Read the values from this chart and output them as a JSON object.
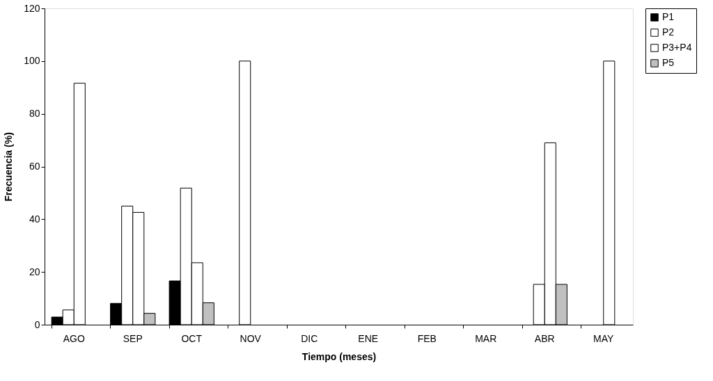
{
  "chart_data": {
    "type": "bar",
    "xlabel": "Tiempo (meses)",
    "ylabel": "Frecuencia (%)",
    "categories": [
      "AGO",
      "SEP",
      "OCT",
      "NOV",
      "DIC",
      "ENE",
      "FEB",
      "MAR",
      "ABR",
      "MAY"
    ],
    "series": [
      {
        "name": "P1",
        "color": "#000000",
        "values": [
          2.9,
          8.1,
          16.6,
          null,
          null,
          null,
          null,
          null,
          null,
          null
        ]
      },
      {
        "name": "P2",
        "color": "#ffffff",
        "values": [
          5.6,
          45,
          51.8,
          100,
          null,
          null,
          null,
          null,
          15.3,
          null
        ]
      },
      {
        "name": "P3+P4",
        "color": "#ffffff",
        "values": [
          91.6,
          42.6,
          23.5,
          null,
          null,
          null,
          null,
          null,
          69,
          100
        ]
      },
      {
        "name": "P5",
        "color": "#c0c0c0",
        "values": [
          null,
          4.3,
          8.3,
          null,
          null,
          null,
          null,
          null,
          15.3,
          null
        ]
      }
    ],
    "ylim": [
      0,
      120
    ],
    "yticks": [
      0,
      20,
      40,
      60,
      80,
      100,
      120
    ],
    "grid": false,
    "legend": "right"
  }
}
